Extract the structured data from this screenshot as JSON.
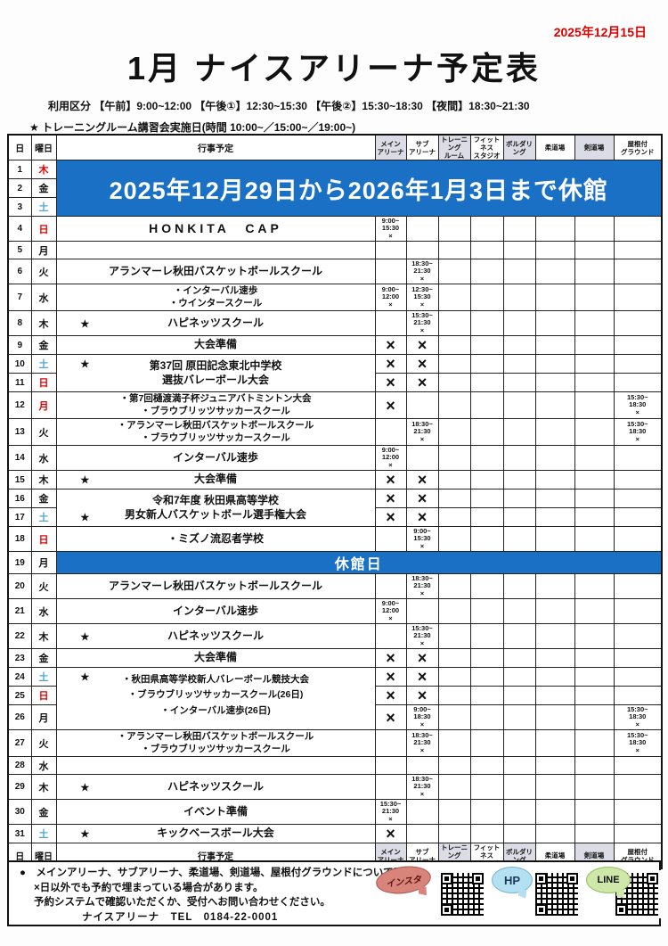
{
  "page": {
    "date_stamp": "2025年12月15日",
    "title": "1月 ナイスアリーナ予定表",
    "usage_line": "利用区分 【午前】9:00~12:00 【午後①】12:30~15:30 【午後②】15:30~18:30 【夜間】18:30~21:30",
    "star_note": "★ トレーニングルーム講習会実施日(時間 10:00~／15:00~／19:00~)"
  },
  "colors": {
    "banner_blue": "#1a70c4",
    "holiday_red": "#e00000",
    "saturday_blue": "#4da6d9",
    "column_gray": "#dcdce6"
  },
  "table": {
    "headers": {
      "day": "日",
      "weekday": "曜日",
      "event": "行事予定",
      "facilities": [
        "メイン|アリーナ",
        "サブ|アリーナ",
        "トレーニング|ルーム",
        "フィットネス|スタジオ",
        "ボルダリング",
        "柔道場",
        "剣道場",
        "屋根付|グラウンド"
      ]
    },
    "col_keys": [
      "main",
      "sub",
      "training",
      "fitness",
      "bouldering",
      "judo",
      "kendo",
      "ground"
    ],
    "closure_banner": "2025年12月29日から2026年1月3日まで休館",
    "closed_day_banner": "休館日",
    "rows": [
      {
        "d": 1,
        "w": "木",
        "wc": "red",
        "banner": "2025年12月29日から2026年1月3日まで休館",
        "banner_rows": 3
      },
      {
        "d": 2,
        "w": "金",
        "wc": "black",
        "banner_cont": true
      },
      {
        "d": 3,
        "w": "土",
        "wc": "blue",
        "banner_cont": true
      },
      {
        "d": 4,
        "w": "日",
        "wc": "red",
        "big": true,
        "event": [
          "HONKITA　CAP"
        ],
        "cells": {
          "main": "9:00~15:30"
        }
      },
      {
        "d": 5,
        "w": "月",
        "wc": "black"
      },
      {
        "d": 6,
        "w": "火",
        "wc": "black",
        "event": [
          "アランマーレ秋田バスケットボールスクール"
        ],
        "cells": {
          "sub": "18:30~21:30"
        }
      },
      {
        "d": 7,
        "w": "水",
        "wc": "black",
        "small": true,
        "event": [
          "・インターバル速歩",
          "・ウインタースクール"
        ],
        "cells": {
          "main": "9:00~12:00",
          "sub": "12:30~15:30"
        }
      },
      {
        "d": 8,
        "w": "木",
        "wc": "black",
        "star": true,
        "event": [
          "ハピネッツスクール"
        ],
        "cells": {
          "sub": "15:30~21:30"
        }
      },
      {
        "d": 9,
        "w": "金",
        "wc": "black",
        "event": [
          "大会準備"
        ],
        "cells": {
          "main": "×",
          "sub": "×"
        }
      },
      {
        "d": 10,
        "w": "土",
        "wc": "blue",
        "star": true,
        "merge": "start",
        "event": [
          "第37回 原田記念東北中学校"
        ],
        "cells": {
          "main": "×",
          "sub": "×"
        }
      },
      {
        "d": 11,
        "w": "日",
        "wc": "red",
        "merge": "end",
        "event": [
          "選抜バレーボール大会"
        ],
        "cells": {
          "main": "×",
          "sub": "×"
        }
      },
      {
        "d": 12,
        "w": "月",
        "wc": "red",
        "small": true,
        "event": [
          "・第7回樋渡満子杯ジュニアバトミントン大会",
          "・ブラウブリッツサッカースクール"
        ],
        "cells": {
          "main": "×",
          "ground": "15:30~18:30"
        }
      },
      {
        "d": 13,
        "w": "火",
        "wc": "black",
        "small": true,
        "event": [
          "・アランマーレ秋田バスケットボールスクール",
          "・ブラウブリッツサッカースクール"
        ],
        "cells": {
          "sub": "18:30~21:30",
          "ground": "15:30~18:30"
        }
      },
      {
        "d": 14,
        "w": "水",
        "wc": "black",
        "event": [
          "インターバル速歩"
        ],
        "cells": {
          "main": "9:00~12:00"
        }
      },
      {
        "d": 15,
        "w": "木",
        "wc": "black",
        "star": true,
        "event": [
          "大会準備"
        ],
        "cells": {
          "main": "×",
          "sub": "×"
        }
      },
      {
        "d": 16,
        "w": "金",
        "wc": "black",
        "merge": "start",
        "event": [
          "令和7年度 秋田県高等学校"
        ],
        "cells": {
          "main": "×",
          "sub": "×"
        }
      },
      {
        "d": 17,
        "w": "土",
        "wc": "blue",
        "star": true,
        "merge": "end",
        "event": [
          "男女新人バスケットボール選手権大会"
        ],
        "cells": {
          "main": "×",
          "sub": "×"
        }
      },
      {
        "d": 18,
        "w": "日",
        "wc": "red",
        "event": [
          "・ミズノ流忍者学校"
        ],
        "cells": {
          "sub": "9:00~15:30"
        }
      },
      {
        "d": 19,
        "w": "月",
        "wc": "black",
        "banner": "休館日",
        "banner_rows": 1
      },
      {
        "d": 20,
        "w": "火",
        "wc": "black",
        "event": [
          "アランマーレ秋田バスケットボールスクール"
        ],
        "cells": {
          "sub": "18:30~21:30"
        }
      },
      {
        "d": 21,
        "w": "水",
        "wc": "black",
        "event": [
          "インターバル速歩"
        ],
        "cells": {
          "main": "9:00~12:00"
        }
      },
      {
        "d": 22,
        "w": "木",
        "wc": "black",
        "star": true,
        "event": [
          "ハピネッツスクール"
        ],
        "cells": {
          "sub": "15:30~21:30"
        }
      },
      {
        "d": 23,
        "w": "金",
        "wc": "black",
        "event": [
          "大会準備"
        ],
        "cells": {
          "main": "×",
          "sub": "×"
        }
      },
      {
        "d": 24,
        "w": "土",
        "wc": "blue",
        "star": true,
        "merge": "start",
        "small": true,
        "event": [
          "・秋田県高等学校新人バレーボール競技大会"
        ],
        "cells": {
          "main": "×",
          "sub": "×"
        }
      },
      {
        "d": 25,
        "w": "日",
        "wc": "red",
        "merge": "mid",
        "small": true,
        "event": [
          "・ブラウブリッツサッカースクール(26日)"
        ],
        "cells": {
          "main": "×",
          "sub": "×"
        }
      },
      {
        "d": 26,
        "w": "月",
        "wc": "black",
        "merge": "end",
        "small": true,
        "event": [
          "・インターバル速歩(26日)"
        ],
        "cells": {
          "main": "×",
          "sub": "9:00~18:30",
          "ground": "15:30~18:30"
        }
      },
      {
        "d": 27,
        "w": "火",
        "wc": "black",
        "small": true,
        "event": [
          "・アランマーレ秋田バスケットボールスクール",
          "・ブラウブリッツサッカースクール"
        ],
        "cells": {
          "sub": "18:30~21:30",
          "ground": "15:30~18:30"
        }
      },
      {
        "d": 28,
        "w": "水",
        "wc": "black"
      },
      {
        "d": 29,
        "w": "木",
        "wc": "black",
        "star": true,
        "event": [
          "ハピネッツスクール"
        ],
        "cells": {
          "sub": "18:30~21:30"
        }
      },
      {
        "d": 30,
        "w": "金",
        "wc": "black",
        "event": [
          "イベント準備"
        ],
        "cells": {
          "main": "15:30~21:30"
        }
      },
      {
        "d": 31,
        "w": "土",
        "wc": "blue",
        "star": true,
        "event": [
          "キックベースボール大会"
        ],
        "cells": {
          "main": "×"
        }
      }
    ]
  },
  "footer": {
    "notes": [
      "●　メインアリーナ、サブアリーナ、柔道場、剣道場、屋根付グラウンドについては",
      "×日以外でも予約で埋まっている場合があります。",
      "予約システムで確認いただくか、受付へお問い合わせください。",
      "ナイスアリーナ　TEL　0184-22-0001"
    ],
    "links": {
      "insta_label": "インスタ",
      "hp_label": "HP",
      "line_label": "LINE"
    }
  }
}
